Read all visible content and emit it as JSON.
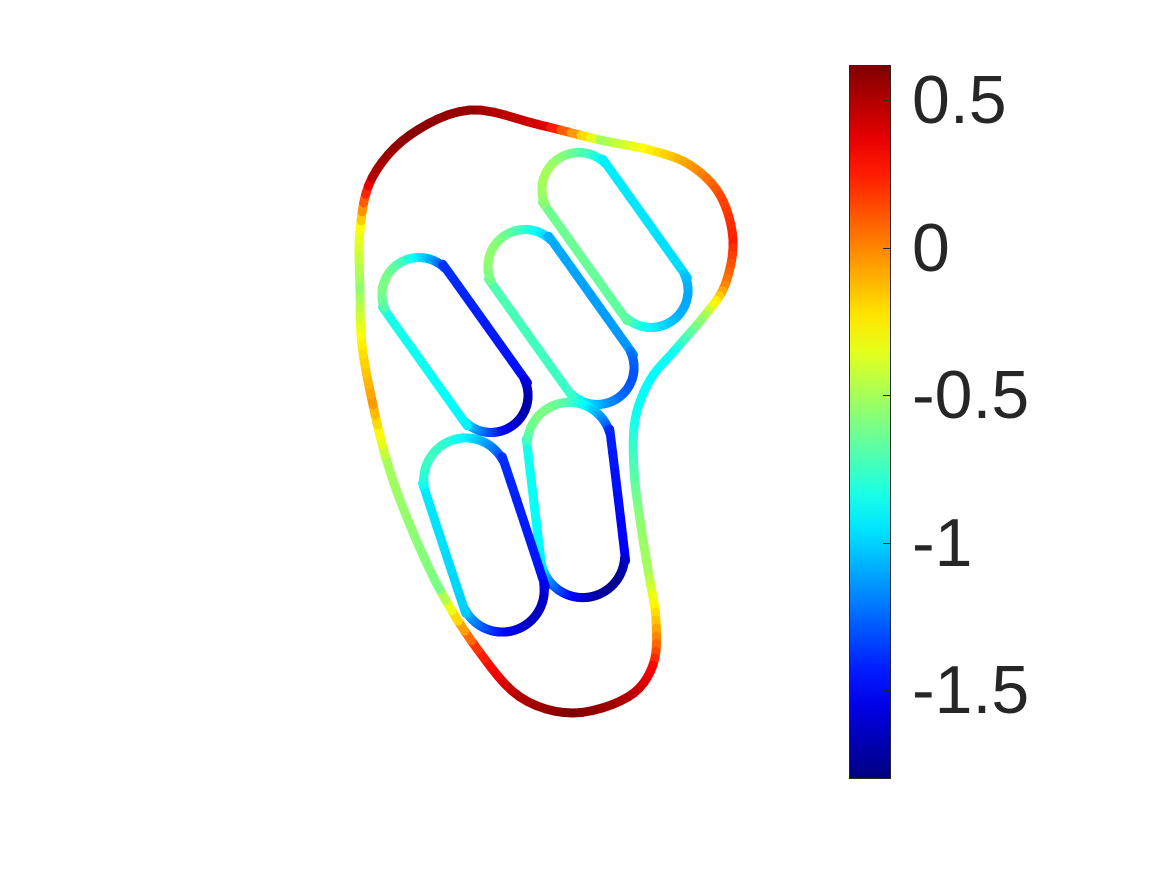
{
  "chart_data": {
    "type": "line",
    "title": "",
    "xlabel": "",
    "ylabel": "",
    "colormap": "jet",
    "clim": [
      -1.8,
      0.62
    ],
    "colorbar": {
      "location": "right",
      "ticks": [
        0.5,
        0,
        -0.5,
        -1,
        -1.5
      ],
      "tick_labels": [
        "0.5",
        "0",
        "-0.5",
        "-1",
        "-1.5"
      ]
    },
    "axis_visible": false,
    "grid": false,
    "curves": [
      {
        "name": "",
        "shape": "outer boundary",
        "value_min": -1.0,
        "value_max": 0.62
      },
      {
        "name": "",
        "shape": "inner loop",
        "value_min": -1.1,
        "value_max": -0.5
      },
      {
        "name": "",
        "shape": "inner loop",
        "value_min": -1.3,
        "value_max": -0.55
      },
      {
        "name": "",
        "shape": "inner loop",
        "value_min": -1.7,
        "value_max": -0.6
      },
      {
        "name": "",
        "shape": "inner loop",
        "value_min": -1.75,
        "value_max": -0.6
      },
      {
        "name": "",
        "shape": "inner loop",
        "value_min": -1.65,
        "value_max": -0.75
      }
    ]
  }
}
